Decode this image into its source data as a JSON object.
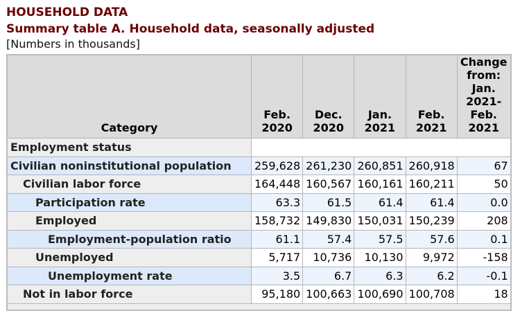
{
  "title": "HOUSEHOLD DATA",
  "subtitle": "Summary table A. Household data, seasonally adjusted",
  "note": "[Numbers in thousands]",
  "colors": {
    "title": "#6b0000",
    "header_bg": "#dcdcdc",
    "alt_row": "#eef4fd",
    "alt_category": "#dce9fb"
  },
  "table": {
    "headers": {
      "category": "Category",
      "c1": "Feb. 2020",
      "c2": "Dec. 2020",
      "c3": "Jan. 2021",
      "c4": "Feb. 2021",
      "change": "Change from: Jan. 2021- Feb. 2021"
    },
    "section": "Employment status",
    "rows": [
      {
        "label": "Civilian noninstitutional population",
        "values": [
          "259,628",
          "261,230",
          "260,851",
          "260,918",
          "67"
        ]
      },
      {
        "label": "Civilian labor force",
        "values": [
          "164,448",
          "160,567",
          "160,161",
          "160,211",
          "50"
        ]
      },
      {
        "label": "Participation rate",
        "values": [
          "63.3",
          "61.5",
          "61.4",
          "61.4",
          "0.0"
        ]
      },
      {
        "label": "Employed",
        "values": [
          "158,732",
          "149,830",
          "150,031",
          "150,239",
          "208"
        ]
      },
      {
        "label": "Employment-population ratio",
        "values": [
          "61.1",
          "57.4",
          "57.5",
          "57.6",
          "0.1"
        ]
      },
      {
        "label": "Unemployed",
        "values": [
          "5,717",
          "10,736",
          "10,130",
          "9,972",
          "-158"
        ]
      },
      {
        "label": "Unemployment rate",
        "values": [
          "3.5",
          "6.7",
          "6.3",
          "6.2",
          "-0.1"
        ]
      },
      {
        "label": "Not in labor force",
        "values": [
          "95,180",
          "100,663",
          "100,690",
          "100,708",
          "18"
        ]
      }
    ]
  }
}
